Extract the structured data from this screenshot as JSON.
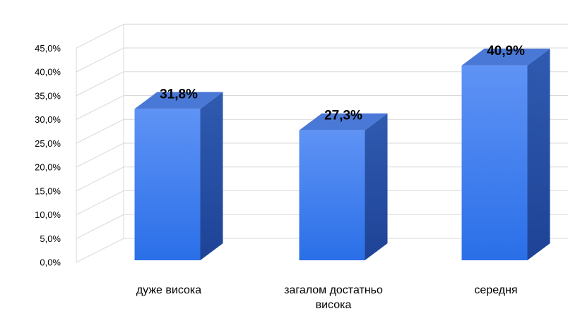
{
  "chart_data": {
    "type": "bar",
    "categories": [
      [
        "дуже висока"
      ],
      [
        "загалом достатньо",
        "висока"
      ],
      [
        "середня"
      ]
    ],
    "values": [
      31.8,
      27.3,
      40.9
    ],
    "data_labels": [
      "31,8%",
      "27,3%",
      "40,9%"
    ],
    "y_ticks": [
      "0,0%",
      "5,0%",
      "10,0%",
      "15,0%",
      "20,0%",
      "25,0%",
      "30,0%",
      "35,0%",
      "40,0%",
      "45,0%"
    ],
    "ylim": [
      0,
      45
    ],
    "grid": true,
    "legend": "none",
    "style": "3d-column",
    "colors": {
      "front_top": "#5f93f5",
      "front_bottom": "#2a6fe8",
      "side": "#2f5bb0",
      "side_dark": "#1e4396",
      "top": "#4a78d6",
      "grid": "#d9d9d9"
    }
  }
}
